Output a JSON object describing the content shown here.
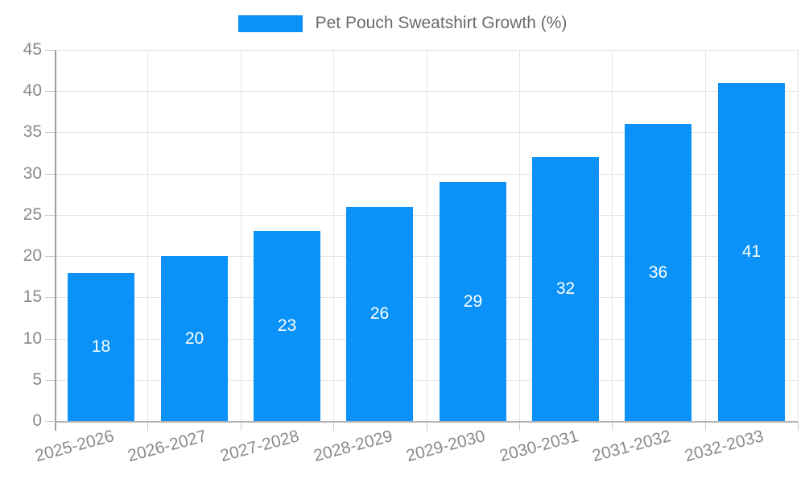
{
  "legend": {
    "label": "Pet Pouch Sweatshirt Growth (%)",
    "swatch_color": "#0b92f8"
  },
  "chart_data": {
    "type": "bar",
    "title": "Pet Pouch Sweatshirt Growth (%)",
    "categories": [
      "2025-2026",
      "2026-2027",
      "2027-2028",
      "2028-2029",
      "2029-2030",
      "2030-2031",
      "2031-2032",
      "2032-2033"
    ],
    "values": [
      18,
      20,
      23,
      26,
      29,
      32,
      36,
      41
    ],
    "value_labels": [
      "18",
      "20",
      "23",
      "26",
      "29",
      "32",
      "36",
      "41"
    ],
    "xlabel": "",
    "ylabel": "",
    "ylim": [
      0,
      45
    ],
    "yticks": [
      0,
      5,
      10,
      15,
      20,
      25,
      30,
      35,
      40,
      45
    ],
    "grid": true,
    "legend_position": "top-center",
    "bar_color": "#0b92f8",
    "value_label_color": "#ffffff",
    "axis_text_color": "#8a8a8a",
    "gridline_color": "#e4e4e4"
  }
}
